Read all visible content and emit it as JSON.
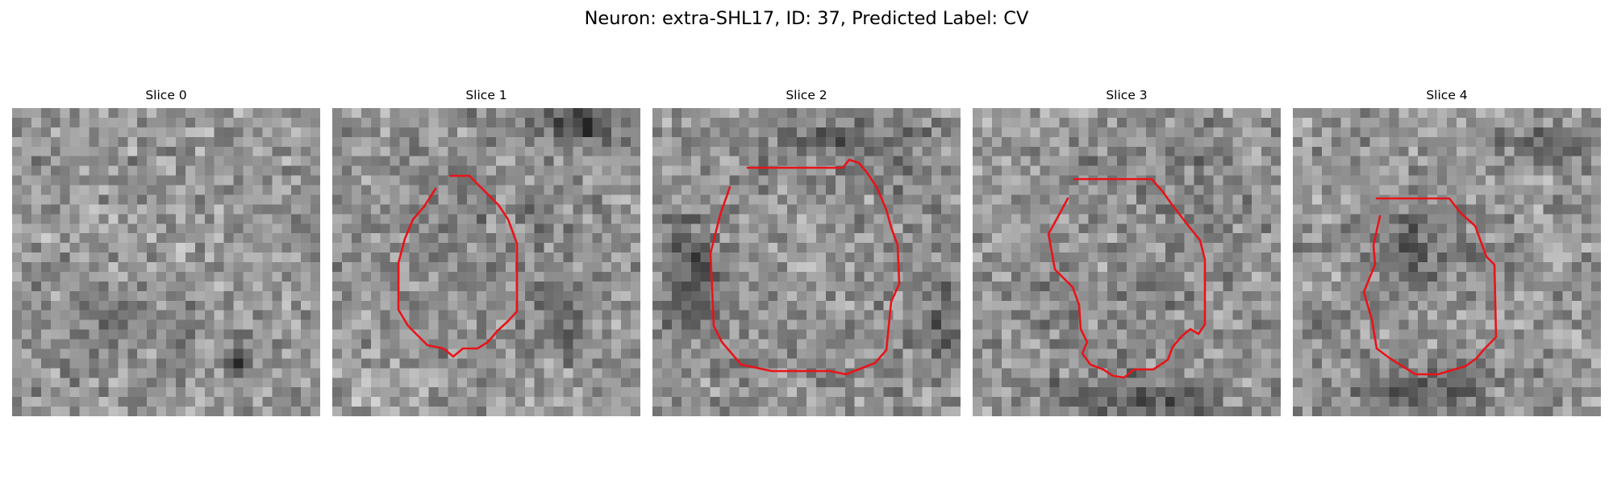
{
  "figure": {
    "title": "Neuron: extra-SHL17, ID: 37, Predicted Label: CV",
    "contour_color": "#e8141a",
    "colormap": "gray"
  },
  "slices": [
    {
      "title": "Slice 0",
      "has_contour": false,
      "content": "noisy grayscale texture, no outlined cell"
    },
    {
      "title": "Slice 1",
      "has_contour": true,
      "content": "roundish cell body outlined in red"
    },
    {
      "title": "Slice 2",
      "has_contour": true,
      "content": "large bright cell body outlined in red"
    },
    {
      "title": "Slice 3",
      "has_contour": true,
      "content": "irregular cell outline in red"
    },
    {
      "title": "Slice 4",
      "has_contour": true,
      "content": "dark cell body outlined in red"
    }
  ]
}
